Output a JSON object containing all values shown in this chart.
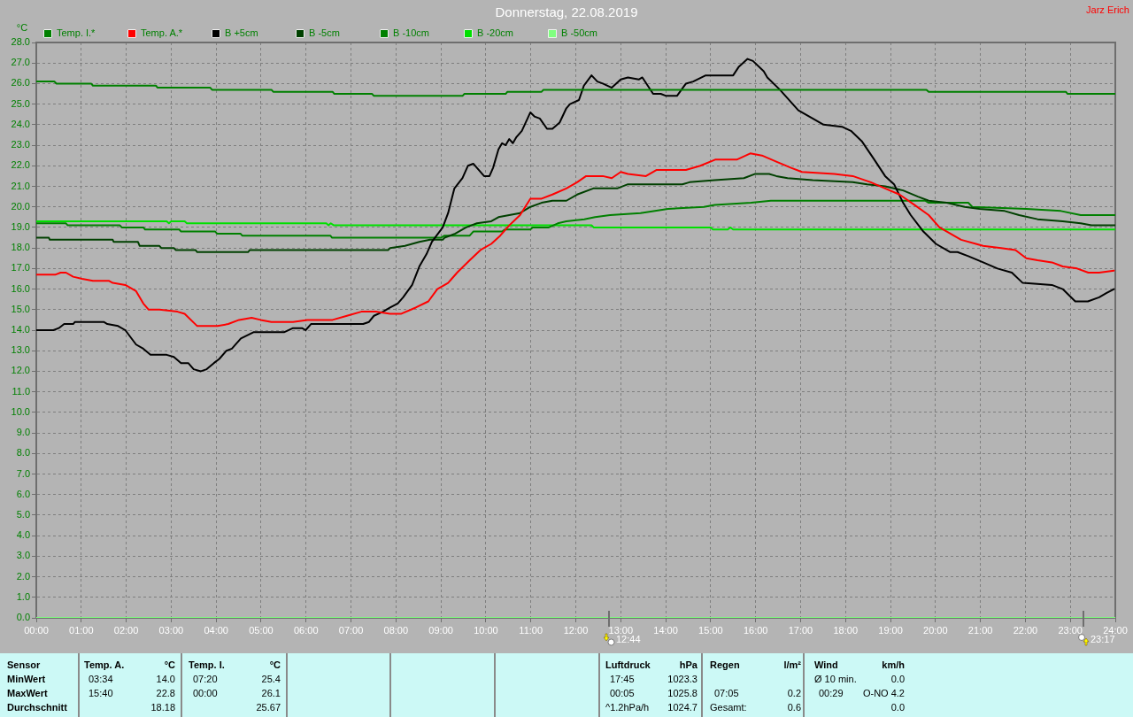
{
  "chart_data": {
    "type": "line",
    "title": "Donnerstag, 22.08.2019",
    "ylabel": "°C",
    "xlim": [
      0,
      24
    ],
    "xticks": [
      {
        "value": 0,
        "label": "00:00"
      },
      {
        "value": 1,
        "label": "01:00"
      },
      {
        "value": 2,
        "label": "02:00"
      },
      {
        "value": 3,
        "label": "03:00"
      },
      {
        "value": 4,
        "label": "04:00"
      },
      {
        "value": 5,
        "label": "05:00"
      },
      {
        "value": 6,
        "label": "06:00"
      },
      {
        "value": 7,
        "label": "07:00"
      },
      {
        "value": 8,
        "label": "08:00"
      },
      {
        "value": 9,
        "label": "09:00"
      },
      {
        "value": 10,
        "label": "10:00"
      },
      {
        "value": 11,
        "label": "11:00"
      },
      {
        "value": 12,
        "label": "12:00"
      },
      {
        "value": 13,
        "label": "13:00"
      },
      {
        "value": 14,
        "label": "14:00"
      },
      {
        "value": 15,
        "label": "15:00"
      },
      {
        "value": 16,
        "label": "16:00"
      },
      {
        "value": 17,
        "label": "17:00"
      },
      {
        "value": 18,
        "label": "18:00"
      },
      {
        "value": 19,
        "label": "19:00"
      },
      {
        "value": 20,
        "label": "20:00"
      },
      {
        "value": 21,
        "label": "21:00"
      },
      {
        "value": 22,
        "label": "22:00"
      },
      {
        "value": 23,
        "label": "23:00"
      },
      {
        "value": 24,
        "label": "24:00"
      }
    ],
    "ylim": [
      0,
      28
    ],
    "yticks": [
      {
        "value": 0,
        "label": "0.0"
      },
      {
        "value": 1,
        "label": "1.0"
      },
      {
        "value": 2,
        "label": "2.0"
      },
      {
        "value": 3,
        "label": "3.0"
      },
      {
        "value": 4,
        "label": "4.0"
      },
      {
        "value": 5,
        "label": "5.0"
      },
      {
        "value": 6,
        "label": "6.0"
      },
      {
        "value": 7,
        "label": "7.0"
      },
      {
        "value": 8,
        "label": "8.0"
      },
      {
        "value": 9,
        "label": "9.0"
      },
      {
        "value": 10,
        "label": "10.0"
      },
      {
        "value": 11,
        "label": "11.0"
      },
      {
        "value": 12,
        "label": "12.0"
      },
      {
        "value": 13,
        "label": "13.0"
      },
      {
        "value": 14,
        "label": "14.0"
      },
      {
        "value": 15,
        "label": "15.0"
      },
      {
        "value": 16,
        "label": "16.0"
      },
      {
        "value": 17,
        "label": "17.0"
      },
      {
        "value": 18,
        "label": "18.0"
      },
      {
        "value": 19,
        "label": "19.0"
      },
      {
        "value": 20,
        "label": "20.0"
      },
      {
        "value": 21,
        "label": "21.0"
      },
      {
        "value": 22,
        "label": "22.0"
      },
      {
        "value": 23,
        "label": "23.0"
      },
      {
        "value": 24,
        "label": "24.0"
      },
      {
        "value": 25,
        "label": "25.0"
      },
      {
        "value": 26,
        "label": "26.0"
      },
      {
        "value": 27,
        "label": "27.0"
      },
      {
        "value": 28,
        "label": "28.0"
      }
    ],
    "grid": true,
    "legend": "top left",
    "series": [
      {
        "name": "Temp. I.*",
        "color": "#008000",
        "x": [
          0,
          0.4,
          0.45,
          1.22,
          1.26,
          2.66,
          2.7,
          3.87,
          3.91,
          5.23,
          5.27,
          6.59,
          6.63,
          7.47,
          7.51,
          9.48,
          9.52,
          10.44,
          10.48,
          11.24,
          11.28,
          19.8,
          19.85,
          22.9,
          22.94,
          24
        ],
        "values": [
          26.1,
          26.1,
          26.0,
          26.0,
          25.9,
          25.9,
          25.8,
          25.8,
          25.7,
          25.7,
          25.6,
          25.6,
          25.5,
          25.5,
          25.4,
          25.4,
          25.5,
          25.5,
          25.6,
          25.6,
          25.7,
          25.7,
          25.6,
          25.6,
          25.5,
          25.5
        ]
      },
      {
        "name": "Temp. A.*",
        "color": "#ff0000",
        "x": [
          0,
          0.42,
          0.54,
          0.66,
          0.82,
          1.02,
          1.26,
          1.62,
          1.7,
          1.98,
          2.22,
          2.38,
          2.5,
          2.74,
          3.14,
          3.3,
          3.58,
          4.03,
          4.27,
          4.51,
          4.79,
          4.99,
          5.23,
          5.71,
          6.03,
          6.59,
          6.91,
          7.23,
          7.55,
          7.87,
          8.12,
          8.44,
          8.72,
          8.92,
          9.16,
          9.36,
          9.64,
          9.88,
          10.12,
          10.32,
          10.52,
          10.76,
          10.99,
          11.24,
          11.48,
          11.79,
          12.03,
          12.23,
          12.6,
          12.8,
          13.0,
          13.16,
          13.56,
          13.8,
          14.45,
          14.77,
          15.1,
          15.58,
          15.88,
          16.14,
          16.46,
          16.79,
          17.03,
          17.75,
          18.16,
          18.56,
          18.88,
          19.2,
          19.53,
          19.85,
          20.09,
          20.33,
          20.57,
          20.9,
          21.06,
          21.46,
          21.78,
          22.02,
          22.27,
          22.59,
          22.83,
          23.15,
          23.4,
          23.64,
          23.97
        ],
        "values": [
          16.7,
          16.7,
          16.8,
          16.8,
          16.6,
          16.5,
          16.4,
          16.4,
          16.3,
          16.2,
          15.9,
          15.3,
          15.0,
          15.0,
          14.9,
          14.8,
          14.2,
          14.2,
          14.3,
          14.5,
          14.6,
          14.5,
          14.4,
          14.4,
          14.5,
          14.5,
          14.7,
          14.9,
          14.9,
          14.8,
          14.8,
          15.1,
          15.4,
          16.0,
          16.3,
          16.8,
          17.4,
          17.9,
          18.2,
          18.6,
          19.1,
          19.6,
          20.4,
          20.4,
          20.6,
          20.9,
          21.2,
          21.5,
          21.5,
          21.4,
          21.7,
          21.6,
          21.5,
          21.8,
          21.8,
          22.0,
          22.3,
          22.3,
          22.6,
          22.5,
          22.2,
          21.9,
          21.7,
          21.6,
          21.5,
          21.2,
          20.9,
          20.6,
          20.1,
          19.6,
          19.0,
          18.7,
          18.4,
          18.2,
          18.1,
          18.0,
          17.9,
          17.5,
          17.4,
          17.3,
          17.1,
          17.0,
          16.8,
          16.8,
          16.9
        ]
      },
      {
        "name": "B +5cm",
        "color": "#000000",
        "x": [
          0,
          0.38,
          0.5,
          0.62,
          0.82,
          0.86,
          1.5,
          1.58,
          1.82,
          1.98,
          2.22,
          2.38,
          2.54,
          2.9,
          3.06,
          3.22,
          3.38,
          3.5,
          3.66,
          3.79,
          3.95,
          4.07,
          4.23,
          4.35,
          4.55,
          4.83,
          5.51,
          5.71,
          5.91,
          5.99,
          6.11,
          6.35,
          7.27,
          7.4,
          7.51,
          7.71,
          7.87,
          8.04,
          8.16,
          8.36,
          8.52,
          8.68,
          8.8,
          9.04,
          9.16,
          9.3,
          9.48,
          9.6,
          9.72,
          9.84,
          9.96,
          10.08,
          10.16,
          10.28,
          10.36,
          10.44,
          10.52,
          10.6,
          10.68,
          10.8,
          10.99,
          11.08,
          11.2,
          11.36,
          11.48,
          11.64,
          11.79,
          11.87,
          12.07,
          12.18,
          12.35,
          12.48,
          12.6,
          12.8,
          13.0,
          13.16,
          13.4,
          13.48,
          13.72,
          13.89,
          14.01,
          14.25,
          14.45,
          14.61,
          14.89,
          15.5,
          15.62,
          15.82,
          15.94,
          16.18,
          16.26,
          16.54,
          16.95,
          17.27,
          17.51,
          17.92,
          18.12,
          18.36,
          18.64,
          18.88,
          19.08,
          19.28,
          19.45,
          19.73,
          20.01,
          20.33,
          20.49,
          20.73,
          21.06,
          21.38,
          21.7,
          21.94,
          22.59,
          22.83,
          23.11,
          23.39,
          23.64,
          23.8,
          23.97
        ],
        "values": [
          14.0,
          14.0,
          14.1,
          14.3,
          14.3,
          14.4,
          14.4,
          14.3,
          14.2,
          14.0,
          13.3,
          13.1,
          12.8,
          12.8,
          12.7,
          12.4,
          12.4,
          12.1,
          12.0,
          12.1,
          12.4,
          12.6,
          13.0,
          13.1,
          13.6,
          13.9,
          13.9,
          14.1,
          14.1,
          14.0,
          14.3,
          14.3,
          14.3,
          14.4,
          14.7,
          14.9,
          15.1,
          15.3,
          15.6,
          16.2,
          17.1,
          17.7,
          18.3,
          19.0,
          19.7,
          20.9,
          21.4,
          22.0,
          22.1,
          21.8,
          21.5,
          21.5,
          21.9,
          22.8,
          23.1,
          23.0,
          23.3,
          23.1,
          23.4,
          23.7,
          24.6,
          24.4,
          24.3,
          23.8,
          23.8,
          24.1,
          24.8,
          25.0,
          25.2,
          25.9,
          26.4,
          26.1,
          26.0,
          25.8,
          26.2,
          26.3,
          26.2,
          26.3,
          25.5,
          25.5,
          25.4,
          25.4,
          26.0,
          26.1,
          26.4,
          26.4,
          26.8,
          27.2,
          27.1,
          26.6,
          26.3,
          25.7,
          24.7,
          24.3,
          24.0,
          23.9,
          23.7,
          23.2,
          22.3,
          21.5,
          21.1,
          20.2,
          19.6,
          18.8,
          18.2,
          17.8,
          17.8,
          17.6,
          17.3,
          17.0,
          16.8,
          16.3,
          16.2,
          16.0,
          15.4,
          15.4,
          15.6,
          15.8,
          16.0
        ]
      },
      {
        "name": "B -5cm",
        "color": "#004000",
        "x": [
          0,
          0.28,
          0.3,
          1.7,
          1.72,
          2.26,
          2.3,
          2.74,
          2.78,
          3.06,
          3.1,
          3.54,
          3.58,
          4.71,
          4.75,
          7.83,
          7.87,
          8.2,
          8.52,
          8.76,
          9.04,
          9.08,
          9.32,
          9.56,
          9.8,
          10.12,
          10.28,
          10.52,
          10.76,
          10.99,
          11.24,
          11.48,
          11.79,
          12.03,
          12.39,
          12.92,
          13.16,
          14.37,
          14.53,
          15.09,
          15.74,
          15.98,
          16.3,
          16.46,
          16.71,
          17.27,
          18.16,
          18.48,
          18.88,
          19.28,
          19.61,
          19.85,
          20.25,
          20.65,
          20.98,
          21.54,
          21.86,
          22.27,
          22.83,
          23.23,
          23.47,
          24
        ],
        "values": [
          18.5,
          18.5,
          18.4,
          18.4,
          18.3,
          18.3,
          18.1,
          18.1,
          18.0,
          18.0,
          17.9,
          17.9,
          17.8,
          17.8,
          17.9,
          17.9,
          18.0,
          18.1,
          18.3,
          18.4,
          18.4,
          18.5,
          18.7,
          19.0,
          19.2,
          19.3,
          19.5,
          19.6,
          19.7,
          20.0,
          20.2,
          20.3,
          20.3,
          20.6,
          20.9,
          20.9,
          21.1,
          21.1,
          21.2,
          21.3,
          21.4,
          21.6,
          21.6,
          21.5,
          21.4,
          21.3,
          21.2,
          21.1,
          21.0,
          20.8,
          20.5,
          20.3,
          20.2,
          20.0,
          19.9,
          19.8,
          19.6,
          19.4,
          19.3,
          19.2,
          19.1,
          19.1
        ]
      },
      {
        "name": "B -10cm",
        "color": "#008000",
        "x": [
          0,
          0.66,
          0.7,
          1.86,
          1.9,
          2.38,
          2.42,
          3.18,
          3.22,
          3.98,
          4.02,
          4.54,
          4.58,
          6.54,
          6.58,
          9.0,
          9.08,
          9.64,
          9.72,
          10.36,
          10.42,
          10.99,
          11.04,
          11.4,
          11.6,
          11.79,
          12.19,
          12.43,
          12.76,
          13.44,
          14.05,
          14.85,
          15.09,
          15.9,
          16.34,
          19.77,
          19.85,
          20.73,
          20.82,
          22.02,
          22.79,
          23.23,
          24
        ],
        "values": [
          19.2,
          19.2,
          19.1,
          19.1,
          19.0,
          19.0,
          18.9,
          18.9,
          18.8,
          18.8,
          18.7,
          18.7,
          18.6,
          18.6,
          18.5,
          18.5,
          18.6,
          18.6,
          18.8,
          18.8,
          18.9,
          18.9,
          19.0,
          19.0,
          19.2,
          19.3,
          19.4,
          19.5,
          19.6,
          19.7,
          19.9,
          20.0,
          20.1,
          20.2,
          20.3,
          20.3,
          20.2,
          20.2,
          20.0,
          19.9,
          19.8,
          19.6,
          19.6
        ]
      },
      {
        "name": "B -20cm",
        "color": "#00e000",
        "x": [
          0,
          2.9,
          2.95,
          3.0,
          3.3,
          3.35,
          6.45,
          6.5,
          6.55,
          6.62,
          12.35,
          12.4,
          15.0,
          15.05,
          15.38,
          15.44,
          15.5,
          24
        ],
        "values": [
          19.3,
          19.3,
          19.2,
          19.3,
          19.3,
          19.2,
          19.2,
          19.1,
          19.2,
          19.1,
          19.1,
          19.0,
          19.0,
          18.9,
          18.9,
          19.0,
          18.9,
          18.9
        ]
      },
      {
        "name": "B -50cm",
        "color": "#80ff80",
        "x": [
          0,
          24
        ],
        "values": [
          0,
          0
        ]
      }
    ],
    "annotations": [
      "Jarz Erich",
      "12:44",
      "23:17",
      "Sensor",
      "MinWert",
      "MaxWert",
      "Durchschnitt",
      "Temp. A.",
      "°C",
      "03:34",
      "14.0",
      "15:40",
      "22.8",
      "18.18",
      "Temp. I.",
      "°C",
      "07:20",
      "25.4",
      "00:00",
      "26.1",
      "25.67",
      "Luftdruck",
      "hPa",
      "17:45",
      "1023.3",
      "00:05",
      "1025.8",
      "^1.2hPa/h",
      "1024.7",
      "Regen",
      "l/m²",
      "07:05",
      "0.2",
      "Gesamt:",
      "0.6",
      "Wind",
      "km/h",
      "Ø 10 min.",
      "0.0",
      "00:29",
      "O-NO 4.2",
      "0.0"
    ]
  }
}
